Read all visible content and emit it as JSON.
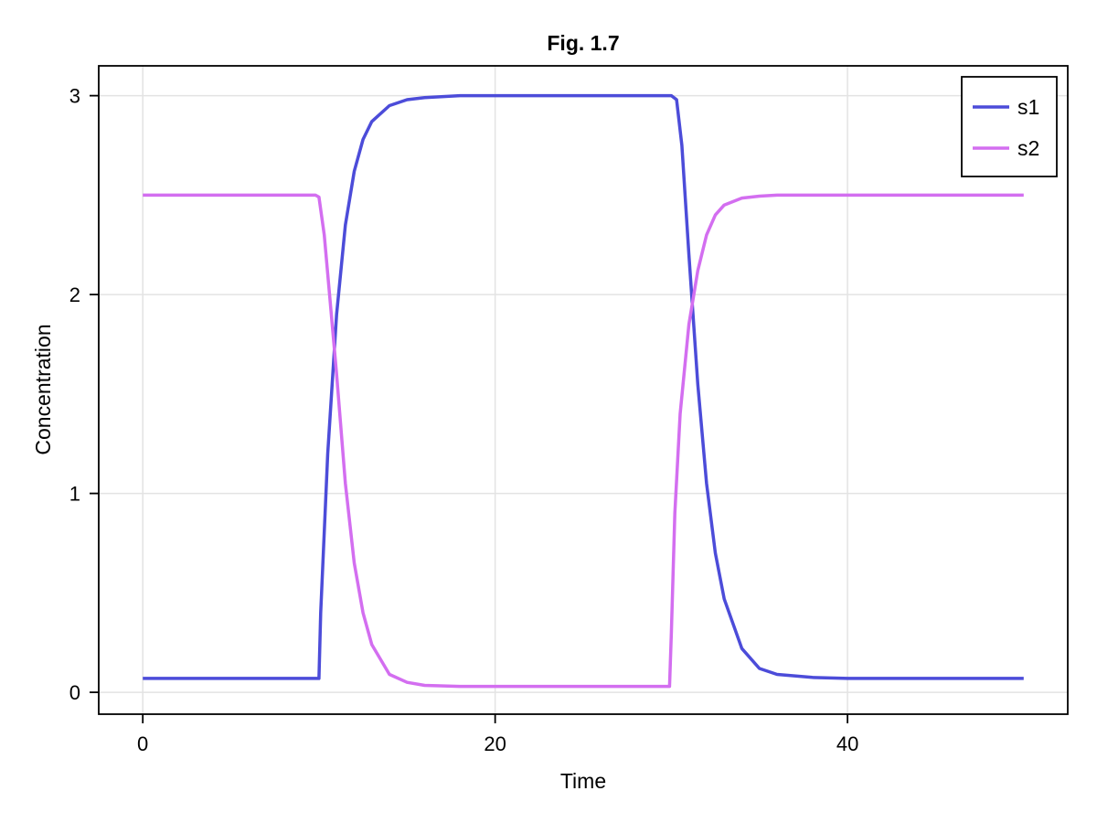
{
  "chart_data": {
    "type": "line",
    "title": "Fig. 1.7",
    "xlabel": "Time",
    "ylabel": "Concentration",
    "xlim": [
      -2.5,
      52.5
    ],
    "ylim": [
      -0.11,
      3.15
    ],
    "xticks": [
      0,
      20,
      40
    ],
    "xtick_labels": [
      "0",
      "20",
      "40"
    ],
    "yticks": [
      0,
      1,
      2,
      3
    ],
    "ytick_labels": [
      "0",
      "1",
      "2",
      "3"
    ],
    "grid": true,
    "legend_position": "top-right",
    "series": [
      {
        "name": "s1",
        "color": "#4c4cd9",
        "x": [
          0,
          10,
          10.1,
          10.5,
          11,
          11.5,
          12,
          12.5,
          13,
          14,
          15,
          16,
          18,
          20,
          25,
          30,
          30.3,
          30.6,
          31,
          31.5,
          32,
          32.5,
          33,
          34,
          35,
          36,
          38,
          40,
          45,
          50
        ],
        "values": [
          0.07,
          0.07,
          0.4,
          1.2,
          1.9,
          2.35,
          2.62,
          2.78,
          2.87,
          2.95,
          2.98,
          2.99,
          3.0,
          3.0,
          3.0,
          3.0,
          2.98,
          2.75,
          2.2,
          1.55,
          1.05,
          0.7,
          0.47,
          0.22,
          0.12,
          0.09,
          0.075,
          0.07,
          0.07,
          0.07
        ]
      },
      {
        "name": "s2",
        "color": "#d36ef0",
        "x": [
          0,
          9.8,
          10,
          10.3,
          10.6,
          11,
          11.5,
          12,
          12.5,
          13,
          14,
          15,
          16,
          18,
          20,
          25,
          29.9,
          30,
          30.2,
          30.5,
          31,
          31.5,
          32,
          32.5,
          33,
          34,
          35,
          36,
          38,
          40,
          45,
          50
        ],
        "values": [
          2.5,
          2.5,
          2.49,
          2.3,
          2.0,
          1.6,
          1.05,
          0.65,
          0.4,
          0.24,
          0.09,
          0.05,
          0.035,
          0.03,
          0.03,
          0.03,
          0.03,
          0.3,
          0.9,
          1.4,
          1.85,
          2.12,
          2.3,
          2.4,
          2.45,
          2.485,
          2.495,
          2.5,
          2.5,
          2.5,
          2.5,
          2.5
        ]
      }
    ]
  }
}
